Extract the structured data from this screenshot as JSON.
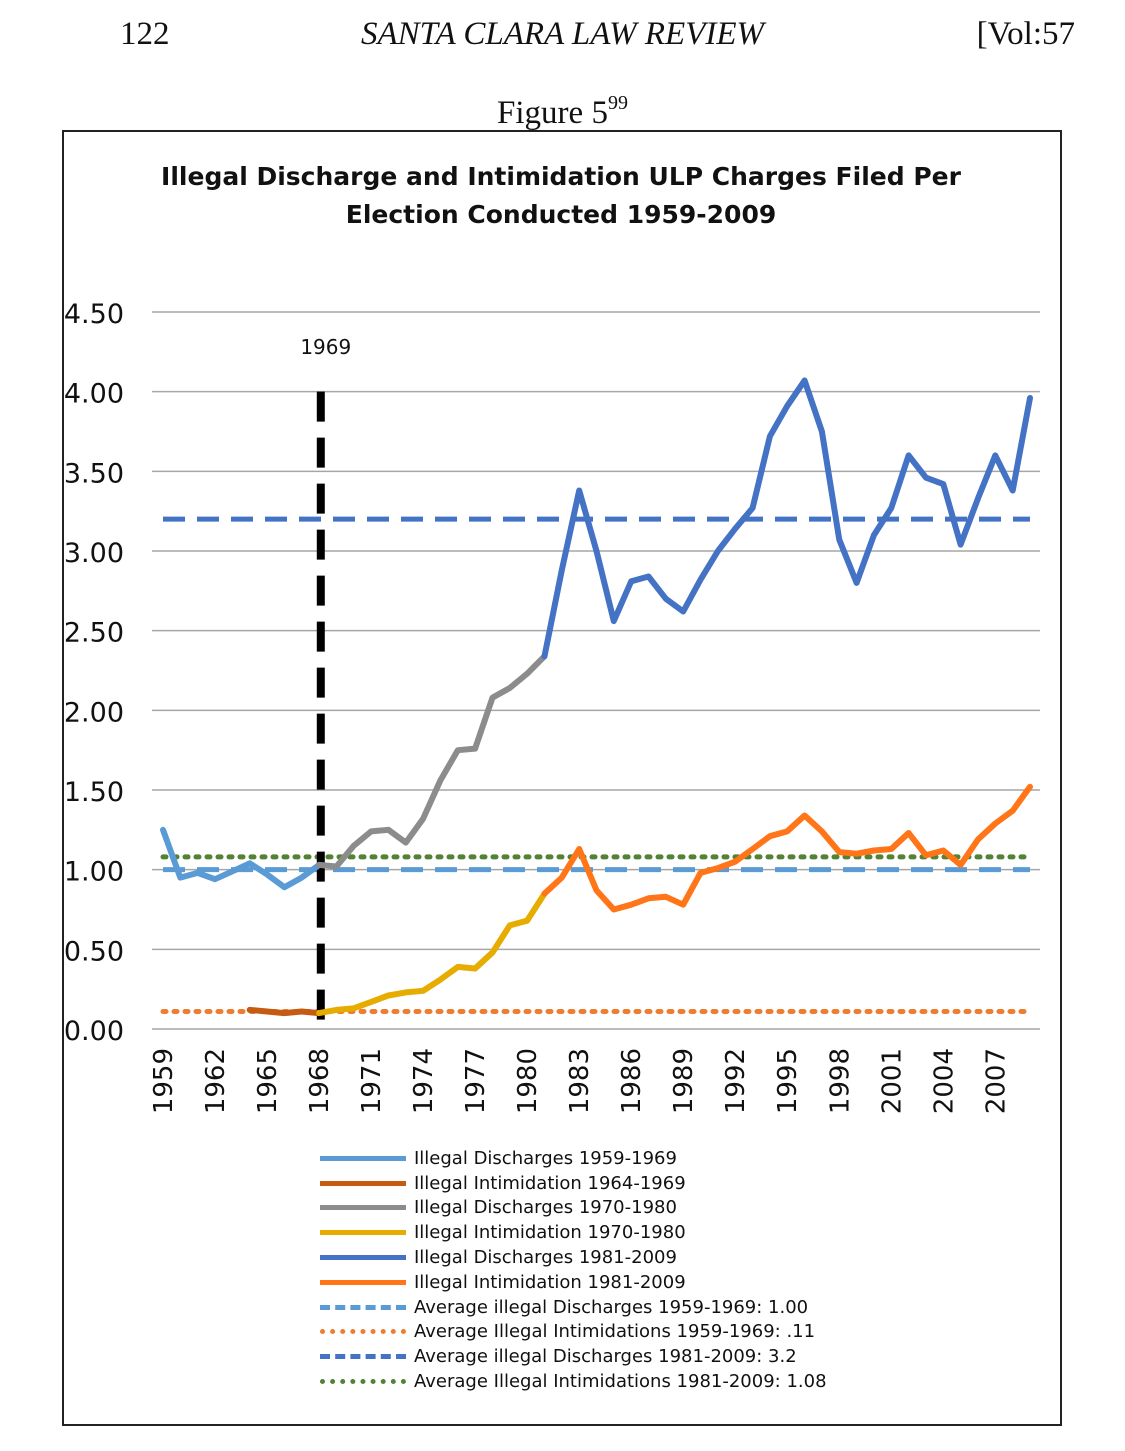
{
  "page": {
    "page_number": "122",
    "journal": "SANTA CLARA LAW REVIEW",
    "volume": "[Vol:57",
    "figure_label": "Figure 5",
    "figure_footnote": "99"
  },
  "chart_data": {
    "type": "line",
    "title_line1": "Illegal Discharge and Intimidation ULP Charges Filed Per",
    "title_line2": "Election Conducted 1959-2009",
    "xlabel": "",
    "ylabel": "",
    "ylim": [
      0,
      4.5
    ],
    "xlim": [
      1959,
      2009
    ],
    "y_ticks": [
      "0.00",
      "0.50",
      "1.00",
      "1.50",
      "2.00",
      "2.50",
      "3.00",
      "3.50",
      "4.00",
      "4.50"
    ],
    "x_ticks": [
      "1959",
      "1962",
      "1965",
      "1968",
      "1971",
      "1974",
      "1977",
      "1980",
      "1983",
      "1986",
      "1989",
      "1992",
      "1995",
      "1998",
      "2001",
      "2004",
      "2007"
    ],
    "grid": "horizontal",
    "marker": {
      "year": 1968.1,
      "label": "1969"
    },
    "series": [
      {
        "name": "Illegal Discharges 1959-1969",
        "color": "#5b9bd5",
        "style": "solid",
        "x": [
          1959,
          1960,
          1961,
          1962,
          1963,
          1964,
          1965,
          1966,
          1967,
          1968
        ],
        "y": [
          1.25,
          0.95,
          0.98,
          0.94,
          0.99,
          1.04,
          0.97,
          0.89,
          0.95,
          1.03
        ]
      },
      {
        "name": "Illegal Intimidation 1964-1969",
        "color": "#c55a11",
        "style": "solid",
        "x": [
          1964,
          1965,
          1966,
          1967,
          1968
        ],
        "y": [
          0.12,
          0.11,
          0.1,
          0.11,
          0.1
        ]
      },
      {
        "name": "Illegal Discharges 1970-1980",
        "color": "#8c8c8c",
        "style": "solid",
        "x": [
          1968,
          1969,
          1970,
          1971,
          1972,
          1973,
          1974,
          1975,
          1976,
          1977,
          1978,
          1979,
          1980,
          1981
        ],
        "y": [
          1.03,
          1.02,
          1.15,
          1.24,
          1.25,
          1.17,
          1.32,
          1.56,
          1.75,
          1.76,
          2.08,
          2.14,
          2.23,
          2.34
        ]
      },
      {
        "name": "Illegal Intimidation 1970-1980",
        "color": "#e6ac00",
        "style": "solid",
        "x": [
          1968,
          1969,
          1970,
          1971,
          1972,
          1973,
          1974,
          1975,
          1976,
          1977,
          1978,
          1979,
          1980,
          1981
        ],
        "y": [
          0.1,
          0.12,
          0.13,
          0.17,
          0.21,
          0.23,
          0.24,
          0.31,
          0.39,
          0.38,
          0.48,
          0.65,
          0.68,
          0.85
        ]
      },
      {
        "name": "Illegal Discharges 1981-2009",
        "color": "#4472c4",
        "style": "solid",
        "x": [
          1981,
          1982,
          1983,
          1984,
          1985,
          1986,
          1987,
          1988,
          1989,
          1990,
          1991,
          1992,
          1993,
          1994,
          1995,
          1996,
          1997,
          1998,
          1999,
          2000,
          2001,
          2002,
          2003,
          2004,
          2005,
          2006,
          2007,
          2008,
          2009
        ],
        "y": [
          2.34,
          2.88,
          3.38,
          3.0,
          2.56,
          2.81,
          2.84,
          2.7,
          2.62,
          2.82,
          3.0,
          3.14,
          3.27,
          3.72,
          3.91,
          4.07,
          3.75,
          3.07,
          2.8,
          3.1,
          3.27,
          3.6,
          3.46,
          3.42,
          3.04,
          3.33,
          3.6,
          3.38,
          3.96
        ]
      },
      {
        "name": "Illegal Intimidation 1981-2009",
        "color": "#ff7518",
        "style": "solid",
        "x": [
          1981,
          1982,
          1983,
          1984,
          1985,
          1986,
          1987,
          1988,
          1989,
          1990,
          1991,
          1992,
          1993,
          1994,
          1995,
          1996,
          1997,
          1998,
          1999,
          2000,
          2001,
          2002,
          2003,
          2004,
          2005,
          2006,
          2007,
          2008,
          2009
        ],
        "y": [
          0.85,
          0.95,
          1.13,
          0.87,
          0.75,
          0.78,
          0.82,
          0.83,
          0.78,
          0.98,
          1.01,
          1.05,
          1.13,
          1.21,
          1.24,
          1.34,
          1.24,
          1.11,
          1.1,
          1.12,
          1.13,
          1.23,
          1.09,
          1.12,
          1.03,
          1.19,
          1.29,
          1.37,
          1.52
        ]
      },
      {
        "name": "Average illegal Discharges 1959-1969: 1.00",
        "color": "#5b9bd5",
        "style": "dashed",
        "x": [
          1959,
          2009
        ],
        "y": [
          1.0,
          1.0
        ]
      },
      {
        "name": "Average Illegal Intimidations 1959-1969: .11",
        "color": "#ed7d31",
        "style": "dotted",
        "x": [
          1959,
          2009
        ],
        "y": [
          0.11,
          0.11
        ]
      },
      {
        "name": "Average illegal Discharges 1981-2009: 3.2",
        "color": "#4472c4",
        "style": "dashed",
        "x": [
          1959,
          2009
        ],
        "y": [
          3.2,
          3.2
        ]
      },
      {
        "name": "Average Illegal Intimidations 1981-2009: 1.08",
        "color": "#548235",
        "style": "dotted",
        "x": [
          1959,
          2009
        ],
        "y": [
          1.08,
          1.08
        ]
      }
    ]
  }
}
